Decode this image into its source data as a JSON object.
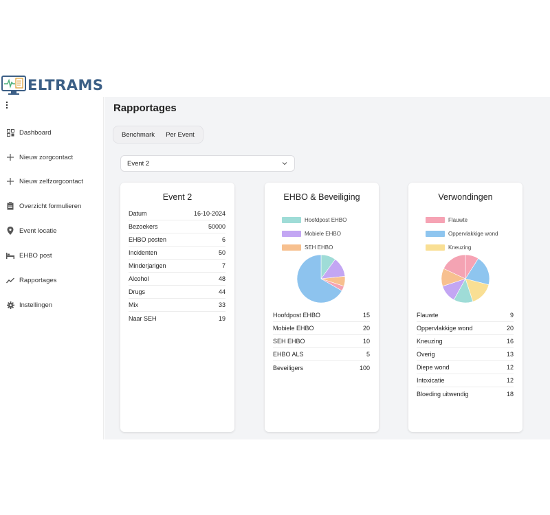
{
  "app": {
    "logo_text": "ELTRAMS"
  },
  "sidebar": {
    "items": [
      {
        "label": "Dashboard",
        "icon": "grid-icon"
      },
      {
        "label": "Nieuw zorgcontact",
        "icon": "plus-icon"
      },
      {
        "label": "Nieuw zelfzorgcontact",
        "icon": "plus-icon"
      },
      {
        "label": "Overzicht formulieren",
        "icon": "clipboard-icon"
      },
      {
        "label": "Event locatie",
        "icon": "location-pin-icon"
      },
      {
        "label": "EHBO post",
        "icon": "bed-icon"
      },
      {
        "label": "Rapportages",
        "icon": "trend-icon"
      },
      {
        "label": "Instellingen",
        "icon": "gear-icon"
      }
    ]
  },
  "main": {
    "title": "Rapportages",
    "tabs": [
      {
        "label": "Benchmark"
      },
      {
        "label": "Per Event"
      }
    ],
    "event_select": {
      "value": "Event 2"
    }
  },
  "cards": {
    "event": {
      "title": "Event 2",
      "rows": [
        {
          "label": "Datum",
          "value": "16-10-2024"
        },
        {
          "label": "Bezoekers",
          "value": "50000"
        },
        {
          "label": "EHBO posten",
          "value": "6"
        },
        {
          "label": "Incidenten",
          "value": "50"
        },
        {
          "label": "Minderjarigen",
          "value": "7"
        },
        {
          "label": "Alcohol",
          "value": "48"
        },
        {
          "label": "Drugs",
          "value": "44"
        },
        {
          "label": "Mix",
          "value": "33"
        },
        {
          "label": "Naar SEH",
          "value": "19"
        }
      ]
    },
    "ehbo": {
      "title": "EHBO & Beveiliging",
      "legend": [
        {
          "label": "Hoofdpost EHBO",
          "color": "#9fdcd7"
        },
        {
          "label": "Mobiele EHBO",
          "color": "#c3a6f3"
        },
        {
          "label": "SEH EHBO",
          "color": "#f7c08f"
        }
      ],
      "rows": [
        {
          "label": "Hoofdpost EHBO",
          "value": "15"
        },
        {
          "label": "Mobiele EHBO",
          "value": "20"
        },
        {
          "label": "SEH EHBO",
          "value": "10"
        },
        {
          "label": "EHBO ALS",
          "value": "5"
        },
        {
          "label": "Beveiligers",
          "value": "100"
        }
      ],
      "pie": [
        {
          "value": 15,
          "color": "#9fdcd7"
        },
        {
          "value": 20,
          "color": "#c3a6f3"
        },
        {
          "value": 10,
          "color": "#f7c08f"
        },
        {
          "value": 5,
          "color": "#f4a3b3"
        },
        {
          "value": 100,
          "color": "#8dc3ee"
        }
      ]
    },
    "verwondingen": {
      "title": "Verwondingen",
      "legend": [
        {
          "label": "Flauwte",
          "color": "#f6a3b4"
        },
        {
          "label": "Oppervlakkige wond",
          "color": "#8ec5ef"
        },
        {
          "label": "Kneuzing",
          "color": "#f9df94"
        }
      ],
      "rows": [
        {
          "label": "Flauwte",
          "value": "9"
        },
        {
          "label": "Oppervlakkige wond",
          "value": "20"
        },
        {
          "label": "Kneuzing",
          "value": "16"
        },
        {
          "label": "Overig",
          "value": "13"
        },
        {
          "label": "Diepe wond",
          "value": "12"
        },
        {
          "label": "Intoxicatie",
          "value": "12"
        },
        {
          "label": "Bloeding uitwendig",
          "value": "18"
        }
      ],
      "pie": [
        {
          "value": 9,
          "color": "#f6a3b4"
        },
        {
          "value": 20,
          "color": "#8ec5ef"
        },
        {
          "value": 16,
          "color": "#f9df94"
        },
        {
          "value": 13,
          "color": "#9fdcd7"
        },
        {
          "value": 12,
          "color": "#c3a6f3"
        },
        {
          "value": 12,
          "color": "#f7c08f"
        },
        {
          "value": 18,
          "color": "#f4a3b3"
        }
      ]
    }
  }
}
